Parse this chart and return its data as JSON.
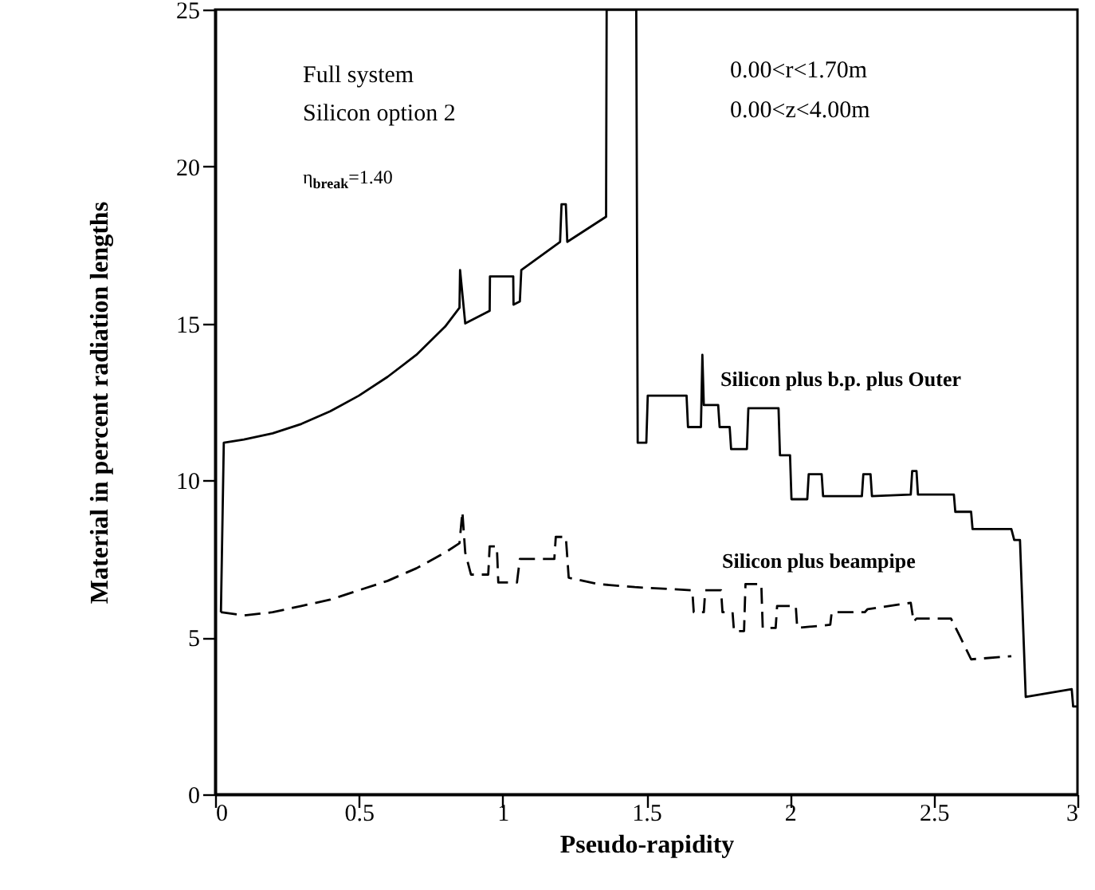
{
  "chart_data": {
    "type": "line",
    "xlabel": "Pseudo-rapidity",
    "ylabel": "Material in percent radiation lengths",
    "xlim": [
      0,
      3
    ],
    "xticks": [
      0,
      0.5,
      1,
      1.5,
      2,
      2.5,
      3
    ],
    "ylim": [
      0,
      25
    ],
    "yticks": [
      0,
      5,
      10,
      15,
      20,
      25
    ],
    "grid": false,
    "annotations": [
      "Full system",
      "Silicon option 2",
      "η$_{break}$=1.40",
      "0.00<r<1.70m",
      "0.00<z<4.00m"
    ],
    "series": [
      {
        "name": "Silicon plus b.p. plus Outer",
        "color": "#000000",
        "line_style": "solid",
        "x": [
          0.02,
          0.03,
          0.1,
          0.2,
          0.3,
          0.4,
          0.5,
          0.6,
          0.7,
          0.8,
          0.85,
          0.852,
          0.87,
          0.955,
          0.956,
          1.037,
          1.038,
          1.06,
          1.065,
          1.2,
          1.205,
          1.22,
          1.225,
          1.36,
          1.362,
          1.465,
          1.47,
          1.5,
          1.505,
          1.64,
          1.645,
          1.69,
          1.695,
          1.7,
          1.75,
          1.755,
          1.79,
          1.795,
          1.85,
          1.855,
          1.96,
          1.965,
          2.0,
          2.005,
          2.06,
          2.065,
          2.11,
          2.115,
          2.25,
          2.255,
          2.28,
          2.285,
          2.42,
          2.425,
          2.44,
          2.445,
          2.57,
          2.575,
          2.63,
          2.635,
          2.77,
          2.78,
          2.8,
          2.82,
          2.98,
          2.985,
          3.0
        ],
        "values": [
          5.8,
          11.2,
          11.3,
          11.5,
          11.8,
          12.2,
          12.7,
          13.3,
          14.0,
          14.9,
          15.5,
          16.7,
          15.0,
          15.4,
          16.5,
          16.5,
          15.6,
          15.7,
          16.7,
          17.6,
          18.8,
          18.8,
          17.6,
          18.4,
          25,
          25,
          11.2,
          11.2,
          12.7,
          12.7,
          11.7,
          11.7,
          14.0,
          12.4,
          12.4,
          11.7,
          11.7,
          11.0,
          11.0,
          12.3,
          12.3,
          10.8,
          10.8,
          9.4,
          9.4,
          10.2,
          10.2,
          9.5,
          9.5,
          10.2,
          10.2,
          9.5,
          9.55,
          10.3,
          10.3,
          9.55,
          9.55,
          9.0,
          9.0,
          8.45,
          8.45,
          8.1,
          8.1,
          3.1,
          3.35,
          2.8,
          2.8
        ]
      },
      {
        "name": "Silicon plus beampipe",
        "color": "#000000",
        "line_style": "dashed",
        "x": [
          0.02,
          0.1,
          0.2,
          0.3,
          0.4,
          0.5,
          0.6,
          0.7,
          0.8,
          0.85,
          0.86,
          0.87,
          0.89,
          0.95,
          0.955,
          0.98,
          0.985,
          1.05,
          1.06,
          1.18,
          1.185,
          1.22,
          1.23,
          1.33,
          1.46,
          1.66,
          1.665,
          1.7,
          1.705,
          1.76,
          1.765,
          1.8,
          1.805,
          1.84,
          1.845,
          1.9,
          1.905,
          1.95,
          1.955,
          2.02,
          2.025,
          2.14,
          2.145,
          2.26,
          2.27,
          2.42,
          2.43,
          2.44,
          2.56,
          2.59,
          2.63,
          2.77
        ],
        "values": [
          5.8,
          5.7,
          5.8,
          6.0,
          6.2,
          6.5,
          6.8,
          7.2,
          7.7,
          8.0,
          9.0,
          7.7,
          7.0,
          7.0,
          7.9,
          7.9,
          6.75,
          6.75,
          7.5,
          7.5,
          8.2,
          8.2,
          6.9,
          6.7,
          6.6,
          6.5,
          5.8,
          5.8,
          6.5,
          6.5,
          5.8,
          5.8,
          5.2,
          5.2,
          6.7,
          6.7,
          5.3,
          5.3,
          6.0,
          6.0,
          5.3,
          5.4,
          5.8,
          5.8,
          5.9,
          6.1,
          5.5,
          5.6,
          5.6,
          5.05,
          4.3,
          4.4
        ]
      }
    ]
  }
}
